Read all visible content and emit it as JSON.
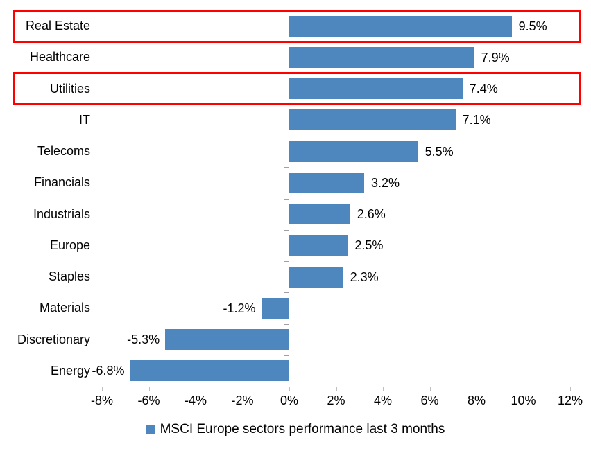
{
  "chart_data": {
    "type": "bar",
    "orientation": "horizontal",
    "title": "",
    "categories": [
      "Real Estate",
      "Healthcare",
      "Utilities",
      "IT",
      "Telecoms",
      "Financials",
      "Industrials",
      "Europe",
      "Staples",
      "Materials",
      "Discretionary",
      "Energy"
    ],
    "values": [
      9.5,
      7.9,
      7.4,
      7.1,
      5.5,
      3.2,
      2.6,
      2.5,
      2.3,
      -1.2,
      -5.3,
      -6.8
    ],
    "data_labels": [
      "9.5%",
      "7.9%",
      "7.4%",
      "7.1%",
      "5.5%",
      "3.2%",
      "2.6%",
      "2.5%",
      "2.3%",
      "-1.2%",
      "-5.3%",
      "-6.8%"
    ],
    "xlabel": "",
    "ylabel": "",
    "xlim": [
      -8,
      12
    ],
    "x_ticks": [
      -8,
      -6,
      -4,
      -2,
      0,
      2,
      4,
      6,
      8,
      10,
      12
    ],
    "x_tick_labels": [
      "-8%",
      "-6%",
      "-4%",
      "-2%",
      "0%",
      "2%",
      "4%",
      "6%",
      "8%",
      "10%",
      "12%"
    ],
    "grid": false,
    "legend_position": "bottom",
    "legend": "MSCI Europe sectors performance last 3 months",
    "bar_color": "#4E87BE",
    "axis_color": "#BFBFBF",
    "zero_line_color": "#A0A0A0",
    "highlight_color": "#FF0000",
    "highlighted_categories": [
      "Real Estate",
      "Utilities"
    ],
    "highlighted_rows": [
      0,
      2
    ]
  }
}
